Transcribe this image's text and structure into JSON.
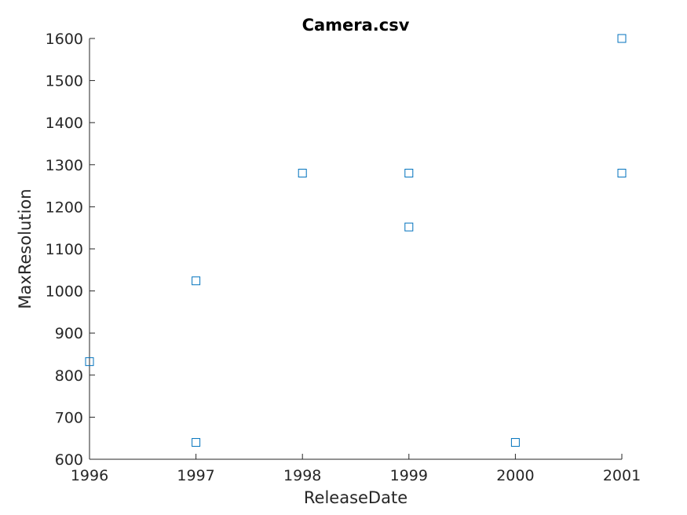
{
  "chart_data": {
    "type": "scatter",
    "title": "Camera.csv",
    "xlabel": "ReleaseDate",
    "ylabel": "MaxResolution",
    "xlim": [
      1996,
      2001
    ],
    "ylim": [
      600,
      1600
    ],
    "xticks": [
      "1996",
      "1997",
      "1998",
      "1999",
      "2000",
      "2001"
    ],
    "yticks": [
      "600",
      "700",
      "800",
      "900",
      "1000",
      "1100",
      "1200",
      "1300",
      "1400",
      "1500",
      "1600"
    ],
    "marker": "square",
    "color": "#0072bd",
    "grid": false,
    "points": [
      {
        "x": 1996,
        "y": 832
      },
      {
        "x": 1997,
        "y": 1024
      },
      {
        "x": 1997,
        "y": 640
      },
      {
        "x": 1998,
        "y": 1280
      },
      {
        "x": 1999,
        "y": 1280
      },
      {
        "x": 1999,
        "y": 1152
      },
      {
        "x": 2000,
        "y": 640
      },
      {
        "x": 2001,
        "y": 1600
      },
      {
        "x": 2001,
        "y": 1280
      }
    ]
  }
}
